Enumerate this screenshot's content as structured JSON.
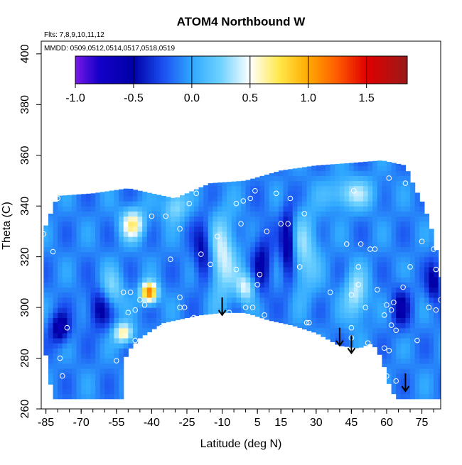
{
  "chart_data": {
    "type": "heatmap",
    "title": "ATOM4 Northbound W",
    "annotations": [
      "Flts: 7,8,9,10,11,12",
      "MMDD: 0509,0512,0514,0517,0518,0519"
    ],
    "xlabel": "Latitude (deg N)",
    "ylabel": "Theta (C)",
    "xlim": [
      -87,
      83
    ],
    "ylim": [
      260,
      405
    ],
    "xticks": [
      -85,
      -70,
      -55,
      -40,
      -25,
      -10,
      5,
      15,
      30,
      45,
      60,
      75
    ],
    "yticks": [
      260,
      280,
      300,
      320,
      340,
      360,
      380,
      400
    ],
    "colorbar": {
      "range": [
        -1.0,
        1.85
      ],
      "ticks": [
        -1.0,
        -0.5,
        0.0,
        0.5,
        1.0,
        1.5
      ],
      "tick_labels": [
        "-1.0",
        "-0.5",
        "0.0",
        "0.5",
        "1.0",
        "1.5"
      ],
      "stops": [
        {
          "value": -1.0,
          "color": "#7a18e8"
        },
        {
          "value": -0.8,
          "color": "#1400c8"
        },
        {
          "value": -0.5,
          "color": "#0000a6"
        },
        {
          "value": -0.25,
          "color": "#1a4ef0"
        },
        {
          "value": 0.0,
          "color": "#2fa8ff"
        },
        {
          "value": 0.25,
          "color": "#6fd2ff"
        },
        {
          "value": 0.5,
          "color": "#ffffff"
        },
        {
          "value": 0.75,
          "color": "#ffe84a"
        },
        {
          "value": 1.0,
          "color": "#ffaa00"
        },
        {
          "value": 1.25,
          "color": "#ff5a00"
        },
        {
          "value": 1.5,
          "color": "#e00000"
        },
        {
          "value": 1.85,
          "color": "#9a1a1a"
        }
      ]
    },
    "coverage": {
      "lower": [
        [
          -86,
          287
        ],
        [
          -82,
          264
        ],
        [
          -53,
          264
        ],
        [
          -53,
          276
        ],
        [
          -50,
          283
        ],
        [
          -45,
          288
        ],
        [
          -35,
          294
        ],
        [
          -20,
          297
        ],
        [
          -10,
          298
        ],
        [
          0,
          298
        ],
        [
          10,
          295
        ],
        [
          20,
          293
        ],
        [
          30,
          290
        ],
        [
          40,
          285
        ],
        [
          48,
          284
        ],
        [
          54,
          286
        ],
        [
          58,
          280
        ],
        [
          61,
          270
        ],
        [
          64,
          264
        ],
        [
          83,
          264
        ]
      ],
      "upper": [
        [
          -86,
          330
        ],
        [
          -80,
          344
        ],
        [
          -65,
          345
        ],
        [
          -50,
          347
        ],
        [
          -30,
          343
        ],
        [
          -15,
          349
        ],
        [
          0,
          350
        ],
        [
          15,
          354
        ],
        [
          30,
          356
        ],
        [
          45,
          357
        ],
        [
          58,
          358
        ],
        [
          68,
          356
        ],
        [
          72,
          347
        ],
        [
          76,
          340
        ],
        [
          80,
          328
        ],
        [
          83,
          312
        ]
      ]
    },
    "field_background": -0.1,
    "field_features": [
      {
        "lat": -48,
        "theta": 333,
        "value": 0.65,
        "width": 5,
        "height": 6
      },
      {
        "lat": -41,
        "theta": 306,
        "value": 1.2,
        "width": 3.5,
        "height": 4
      },
      {
        "lat": -52,
        "theta": 290,
        "value": 0.7,
        "width": 4,
        "height": 4
      },
      {
        "lat": -57,
        "theta": 307,
        "value": 0.3,
        "width": 5,
        "height": 8
      },
      {
        "lat": -79,
        "theta": 292,
        "value": -0.65,
        "width": 4,
        "height": 6
      },
      {
        "lat": -62,
        "theta": 300,
        "value": -0.55,
        "width": 5,
        "height": 8
      },
      {
        "lat": -10,
        "theta": 320,
        "value": 0.45,
        "width": 6,
        "height": 16
      },
      {
        "lat": 0,
        "theta": 308,
        "value": 0.45,
        "width": 4,
        "height": 6
      },
      {
        "lat": -18,
        "theta": 322,
        "value": -0.55,
        "width": 4,
        "height": 12
      },
      {
        "lat": 7,
        "theta": 318,
        "value": -0.5,
        "width": 4,
        "height": 12
      },
      {
        "lat": 18,
        "theta": 325,
        "value": -0.7,
        "width": 3,
        "height": 14
      },
      {
        "lat": 25,
        "theta": 322,
        "value": 0.3,
        "width": 6,
        "height": 16
      },
      {
        "lat": 47,
        "theta": 305,
        "value": 0.4,
        "width": 5,
        "height": 10
      },
      {
        "lat": 66,
        "theta": 300,
        "value": -0.5,
        "width": 4,
        "height": 8
      },
      {
        "lat": 80,
        "theta": 310,
        "value": -0.55,
        "width": 3,
        "height": 8
      },
      {
        "lat": -30,
        "theta": 340,
        "value": 0.35,
        "width": 5,
        "height": 6
      },
      {
        "lat": 45,
        "theta": 345,
        "value": 0.35,
        "width": 10,
        "height": 6
      }
    ],
    "points": [
      [
        -86,
        329
      ],
      [
        -82,
        322
      ],
      [
        -80,
        343
      ],
      [
        -76,
        292
      ],
      [
        -79,
        280
      ],
      [
        -78,
        273
      ],
      [
        -55,
        279
      ],
      [
        -49,
        279
      ],
      [
        -47,
        287
      ],
      [
        -52,
        306
      ],
      [
        -49,
        306
      ],
      [
        -50,
        298
      ],
      [
        -47,
        299
      ],
      [
        -45,
        303
      ],
      [
        -43,
        301
      ],
      [
        -40,
        289
      ],
      [
        -36,
        292
      ],
      [
        -40,
        336
      ],
      [
        -34,
        336
      ],
      [
        -32,
        319
      ],
      [
        -28,
        304
      ],
      [
        -28,
        300
      ],
      [
        -26,
        300
      ],
      [
        -22,
        296
      ],
      [
        -16,
        296
      ],
      [
        -19,
        321
      ],
      [
        -15,
        317
      ],
      [
        -12,
        328
      ],
      [
        -21,
        345
      ],
      [
        -24,
        341
      ],
      [
        -28,
        331
      ],
      [
        -4,
        341
      ],
      [
        -1,
        342
      ],
      [
        -2,
        333
      ],
      [
        -4,
        315
      ],
      [
        -7,
        298
      ],
      [
        0,
        300
      ],
      [
        3,
        300
      ],
      [
        2,
        343
      ],
      [
        4,
        346
      ],
      [
        6,
        313
      ],
      [
        5,
        309
      ],
      [
        8,
        297
      ],
      [
        9,
        330
      ],
      [
        13,
        345
      ],
      [
        15,
        333
      ],
      [
        18,
        333
      ],
      [
        19,
        343
      ],
      [
        23,
        316
      ],
      [
        25,
        337
      ],
      [
        26,
        294
      ],
      [
        27,
        294
      ],
      [
        36,
        306
      ],
      [
        43,
        325
      ],
      [
        46,
        346
      ],
      [
        48,
        316
      ],
      [
        48,
        309
      ],
      [
        45,
        305
      ],
      [
        45,
        292
      ],
      [
        45,
        288
      ],
      [
        49,
        325
      ],
      [
        51,
        300
      ],
      [
        52,
        286
      ],
      [
        53,
        323
      ],
      [
        55,
        323
      ],
      [
        56,
        307
      ],
      [
        59,
        297
      ],
      [
        59,
        284
      ],
      [
        60,
        273
      ],
      [
        61,
        283
      ],
      [
        60,
        301
      ],
      [
        62,
        299
      ],
      [
        62,
        293
      ],
      [
        64,
        291
      ],
      [
        64,
        271
      ],
      [
        63,
        302
      ],
      [
        61,
        351
      ],
      [
        67,
        308
      ],
      [
        68,
        349
      ],
      [
        70,
        316
      ],
      [
        73,
        287
      ],
      [
        75,
        326
      ],
      [
        78,
        300
      ],
      [
        80,
        323
      ],
      [
        81,
        299
      ],
      [
        81,
        315
      ],
      [
        83,
        303
      ]
    ],
    "arrows": [
      {
        "lat": -10,
        "theta_top": 304,
        "theta_bottom": 297
      },
      {
        "lat": 40,
        "theta_top": 292,
        "theta_bottom": 285
      },
      {
        "lat": 45,
        "theta_top": 289,
        "theta_bottom": 282
      },
      {
        "lat": 68,
        "theta_top": 274,
        "theta_bottom": 267
      }
    ]
  }
}
